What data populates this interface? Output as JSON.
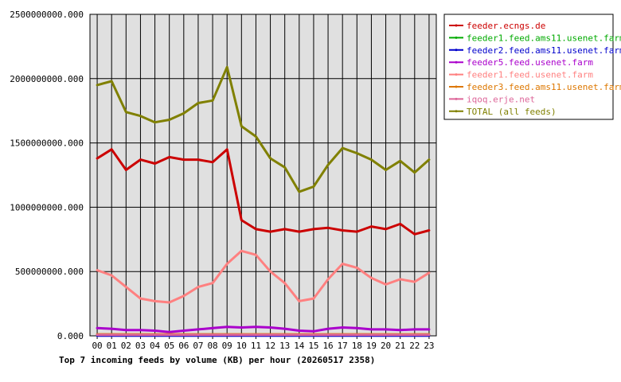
{
  "chart_data": {
    "type": "line",
    "title": "Top 7 incoming feeds by volume (KB) per hour (20260517 2358)",
    "xlabel": "",
    "ylabel": "",
    "ylim": [
      0,
      2500000000
    ],
    "y_ticks": [
      "0.000",
      "500000000.000",
      "1000000000.000",
      "1500000000.000",
      "2000000000.000",
      "2500000000.000"
    ],
    "y_tick_values": [
      0,
      500000000,
      1000000000,
      1500000000,
      2000000000,
      2500000000
    ],
    "categories": [
      "00",
      "01",
      "02",
      "03",
      "04",
      "05",
      "06",
      "07",
      "08",
      "09",
      "10",
      "11",
      "12",
      "13",
      "14",
      "15",
      "16",
      "17",
      "18",
      "19",
      "20",
      "21",
      "22",
      "23"
    ],
    "grid": true,
    "legend_position": "right",
    "series": [
      {
        "name": "feeder.ecngs.de",
        "color": "#cc0000",
        "values": [
          1380000000,
          1450000000,
          1290000000,
          1370000000,
          1340000000,
          1390000000,
          1370000000,
          1370000000,
          1350000000,
          1450000000,
          900000000,
          830000000,
          810000000,
          830000000,
          810000000,
          830000000,
          840000000,
          820000000,
          810000000,
          850000000,
          830000000,
          870000000,
          790000000,
          820000000
        ]
      },
      {
        "name": "feeder1.feed.ams11.usenet.farm",
        "color": "#00aa00",
        "values": [
          3000000,
          3000000,
          3000000,
          3000000,
          3000000,
          3000000,
          3000000,
          3000000,
          3000000,
          3000000,
          3000000,
          3000000,
          3000000,
          3000000,
          3000000,
          3000000,
          3000000,
          3000000,
          3000000,
          3000000,
          3000000,
          3000000,
          3000000,
          3000000
        ]
      },
      {
        "name": "feeder2.feed.ams11.usenet.farm",
        "color": "#0000cc",
        "values": [
          2000000,
          2000000,
          2000000,
          2000000,
          2000000,
          2000000,
          2000000,
          2000000,
          2000000,
          2000000,
          2000000,
          2000000,
          2000000,
          2000000,
          2000000,
          2000000,
          2000000,
          2000000,
          2000000,
          2000000,
          2000000,
          2000000,
          2000000,
          2000000
        ]
      },
      {
        "name": "feeder5.feed.usenet.farm",
        "color": "#aa00cc",
        "values": [
          60000000,
          55000000,
          45000000,
          45000000,
          40000000,
          30000000,
          40000000,
          50000000,
          60000000,
          70000000,
          65000000,
          70000000,
          65000000,
          55000000,
          40000000,
          35000000,
          55000000,
          65000000,
          60000000,
          50000000,
          50000000,
          45000000,
          50000000,
          50000000
        ]
      },
      {
        "name": "feeder1.feed.usenet.farm",
        "color": "#ff8080",
        "values": [
          510000000,
          470000000,
          380000000,
          290000000,
          270000000,
          260000000,
          310000000,
          380000000,
          410000000,
          560000000,
          660000000,
          630000000,
          500000000,
          410000000,
          270000000,
          290000000,
          440000000,
          560000000,
          530000000,
          450000000,
          400000000,
          440000000,
          420000000,
          490000000
        ]
      },
      {
        "name": "feeder3.feed.ams11.usenet.farm",
        "color": "#dd7700",
        "values": [
          12000000,
          12000000,
          12000000,
          12000000,
          12000000,
          12000000,
          12000000,
          12000000,
          12000000,
          12000000,
          12000000,
          12000000,
          12000000,
          12000000,
          12000000,
          12000000,
          12000000,
          12000000,
          12000000,
          12000000,
          12000000,
          12000000,
          12000000,
          12000000
        ]
      },
      {
        "name": "iqoq.erje.net",
        "color": "#dd6699",
        "values": [
          8000000,
          8000000,
          8000000,
          8000000,
          8000000,
          8000000,
          8000000,
          8000000,
          8000000,
          8000000,
          8000000,
          8000000,
          8000000,
          8000000,
          8000000,
          8000000,
          8000000,
          8000000,
          8000000,
          8000000,
          8000000,
          8000000,
          8000000,
          8000000
        ]
      },
      {
        "name": "TOTAL (all feeds)",
        "color": "#808000",
        "values": [
          1950000000,
          1980000000,
          1740000000,
          1710000000,
          1660000000,
          1680000000,
          1730000000,
          1810000000,
          1830000000,
          2090000000,
          1630000000,
          1550000000,
          1380000000,
          1310000000,
          1120000000,
          1160000000,
          1330000000,
          1460000000,
          1420000000,
          1370000000,
          1290000000,
          1360000000,
          1270000000,
          1370000000
        ]
      }
    ]
  }
}
